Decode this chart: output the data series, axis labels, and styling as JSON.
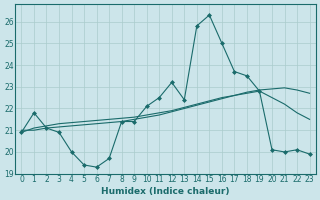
{
  "xlabel": "Humidex (Indice chaleur)",
  "ylabel": "",
  "xlim": [
    -0.5,
    23.5
  ],
  "ylim": [
    19,
    26.8
  ],
  "yticks": [
    19,
    20,
    21,
    22,
    23,
    24,
    25,
    26
  ],
  "xticks": [
    0,
    1,
    2,
    3,
    4,
    5,
    6,
    7,
    8,
    9,
    10,
    11,
    12,
    13,
    14,
    15,
    16,
    17,
    18,
    19,
    20,
    21,
    22,
    23
  ],
  "bg_color": "#cce5ea",
  "grid_color": "#aacccc",
  "line_color": "#1a6b6b",
  "line1_x": [
    0,
    1,
    2,
    3,
    4,
    5,
    6,
    7,
    8,
    9,
    10,
    11,
    12,
    13,
    14,
    15,
    16,
    17,
    18,
    19,
    20,
    21,
    22,
    23
  ],
  "line1_y": [
    20.9,
    21.8,
    21.1,
    20.9,
    20.0,
    19.4,
    19.3,
    19.7,
    21.4,
    21.4,
    22.1,
    22.5,
    23.2,
    22.4,
    25.8,
    26.3,
    25.0,
    23.7,
    23.5,
    22.8,
    20.1,
    20.0,
    20.1,
    19.9
  ],
  "line2_x": [
    0,
    1,
    2,
    3,
    4,
    5,
    6,
    7,
    8,
    9,
    10,
    11,
    12,
    13,
    14,
    15,
    16,
    17,
    18,
    19,
    20,
    21,
    22,
    23
  ],
  "line2_y": [
    21.0,
    21.0,
    21.1,
    21.15,
    21.2,
    21.25,
    21.3,
    21.35,
    21.4,
    21.5,
    21.6,
    21.7,
    21.85,
    22.0,
    22.15,
    22.3,
    22.45,
    22.6,
    22.75,
    22.85,
    22.9,
    22.95,
    22.85,
    22.7
  ],
  "line3_x": [
    0,
    1,
    2,
    3,
    4,
    5,
    6,
    7,
    8,
    9,
    10,
    11,
    12,
    13,
    14,
    15,
    16,
    17,
    18,
    19,
    20,
    21,
    22,
    23
  ],
  "line3_y": [
    20.9,
    21.1,
    21.2,
    21.3,
    21.35,
    21.4,
    21.45,
    21.5,
    21.55,
    21.6,
    21.7,
    21.8,
    21.9,
    22.05,
    22.2,
    22.35,
    22.5,
    22.6,
    22.7,
    22.8,
    22.5,
    22.2,
    21.8,
    21.5
  ]
}
